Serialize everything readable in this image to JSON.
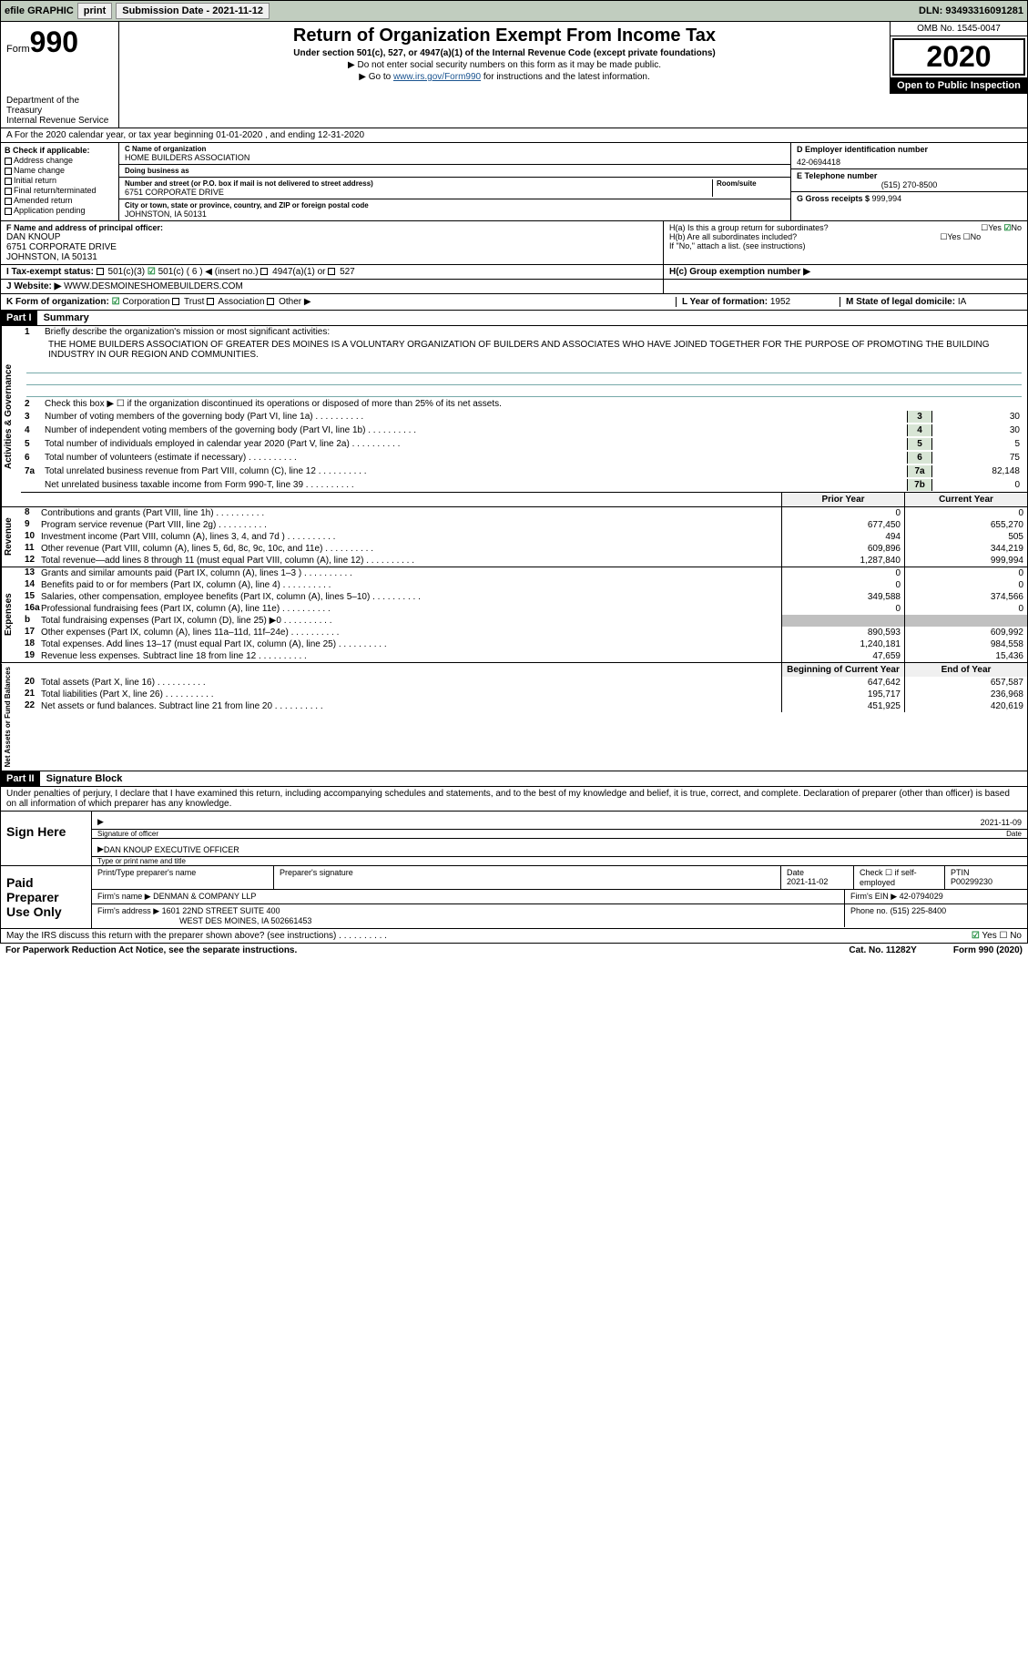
{
  "topbar": {
    "efile": "efile GRAPHIC",
    "print": "print",
    "subdate_label": "Submission Date - ",
    "subdate": "2021-11-12",
    "dln_label": "DLN: ",
    "dln": "93493316091281"
  },
  "header": {
    "form_label": "Form",
    "form_num": "990",
    "title": "Return of Organization Exempt From Income Tax",
    "subtitle": "Under section 501(c), 527, or 4947(a)(1) of the Internal Revenue Code (except private foundations)",
    "instr1": "▶ Do not enter social security numbers on this form as it may be made public.",
    "instr2a": "▶ Go to ",
    "instr2_link": "www.irs.gov/Form990",
    "instr2b": " for instructions and the latest information.",
    "dept": "Department of the Treasury\nInternal Revenue Service",
    "omb": "OMB No. 1545-0047",
    "year": "2020",
    "open": "Open to Public Inspection"
  },
  "A": {
    "line": "A For the 2020 calendar year, or tax year beginning 01-01-2020     , and ending 12-31-2020"
  },
  "B": {
    "header": "B Check if applicable:",
    "opts": [
      "Address change",
      "Name change",
      "Initial return",
      "Final return/terminated",
      "Amended return",
      "Application pending"
    ]
  },
  "C": {
    "name_label": "C Name of organization",
    "name": "HOME BUILDERS ASSOCIATION",
    "dba_label": "Doing business as",
    "addr_label": "Number and street (or P.O. box if mail is not delivered to street address)",
    "room_label": "Room/suite",
    "addr": "6751 CORPORATE DRIVE",
    "city_label": "City or town, state or province, country, and ZIP or foreign postal code",
    "city": "JOHNSTON, IA  50131"
  },
  "D": {
    "label": "D Employer identification number",
    "value": "42-0694418"
  },
  "E": {
    "label": "E Telephone number",
    "value": "(515) 270-8500"
  },
  "G": {
    "label": "G Gross receipts $ ",
    "value": "999,994"
  },
  "F": {
    "label": "F  Name and address of principal officer:",
    "name": "DAN KNOUP",
    "addr": "6751 CORPORATE DRIVE",
    "city": "JOHNSTON, IA  50131"
  },
  "H": {
    "a": "H(a)  Is this a group return for subordinates?",
    "b": "H(b)  Are all subordinates included?",
    "note": "If \"No,\" attach a list. (see instructions)",
    "c": "H(c)  Group exemption number ▶"
  },
  "I": {
    "label": "I   Tax-exempt status:",
    "o1": "501(c)(3)",
    "o2": "501(c) ( 6 ) ◀ (insert no.)",
    "o3": "4947(a)(1) or",
    "o4": "527"
  },
  "J": {
    "label": "J   Website: ▶",
    "value": "WWW.DESMOINESHOMEBUILDERS.COM"
  },
  "K": {
    "label": "K Form of organization:",
    "opts": [
      "Corporation",
      "Trust",
      "Association",
      "Other ▶"
    ]
  },
  "L": {
    "label": "L Year of formation: ",
    "value": "1952"
  },
  "M": {
    "label": "M State of legal domicile: ",
    "value": "IA"
  },
  "parts": {
    "p1": "Part I",
    "p1_title": "Summary",
    "p2": "Part II",
    "p2_title": "Signature Block"
  },
  "summary": {
    "l1_label": "Briefly describe the organization's mission or most significant activities:",
    "l1_text": "THE HOME BUILDERS ASSOCIATION OF GREATER DES MOINES IS A VOLUNTARY ORGANIZATION OF BUILDERS AND ASSOCIATES WHO HAVE JOINED TOGETHER FOR THE PURPOSE OF PROMOTING THE BUILDING INDUSTRY IN OUR REGION AND COMMUNITIES.",
    "l2": "Check this box ▶ ☐ if the organization discontinued its operations or disposed of more than 25% of its net assets.",
    "l3": "Number of voting members of the governing body (Part VI, line 1a)",
    "l3v": "30",
    "l4": "Number of independent voting members of the governing body (Part VI, line 1b)",
    "l4v": "30",
    "l5": "Total number of individuals employed in calendar year 2020 (Part V, line 2a)",
    "l5v": "5",
    "l6": "Total number of volunteers (estimate if necessary)",
    "l6v": "75",
    "l7a": "Total unrelated business revenue from Part VIII, column (C), line 12",
    "l7av": "82,148",
    "l7b": "Net unrelated business taxable income from Form 990-T, line 39",
    "l7bv": "0",
    "pyh": "Prior Year",
    "cyh": "Current Year",
    "boyh": "Beginning of Current Year",
    "eoyh": "End of Year"
  },
  "table_lines": [
    {
      "n": "8",
      "t": "Contributions and grants (Part VIII, line 1h)",
      "py": "0",
      "cy": "0"
    },
    {
      "n": "9",
      "t": "Program service revenue (Part VIII, line 2g)",
      "py": "677,450",
      "cy": "655,270"
    },
    {
      "n": "10",
      "t": "Investment income (Part VIII, column (A), lines 3, 4, and 7d )",
      "py": "494",
      "cy": "505"
    },
    {
      "n": "11",
      "t": "Other revenue (Part VIII, column (A), lines 5, 6d, 8c, 9c, 10c, and 11e)",
      "py": "609,896",
      "cy": "344,219"
    },
    {
      "n": "12",
      "t": "Total revenue—add lines 8 through 11 (must equal Part VIII, column (A), line 12)",
      "py": "1,287,840",
      "cy": "999,994"
    },
    {
      "n": "13",
      "t": "Grants and similar amounts paid (Part IX, column (A), lines 1–3 )",
      "py": "0",
      "cy": "0"
    },
    {
      "n": "14",
      "t": "Benefits paid to or for members (Part IX, column (A), line 4)",
      "py": "0",
      "cy": "0"
    },
    {
      "n": "15",
      "t": "Salaries, other compensation, employee benefits (Part IX, column (A), lines 5–10)",
      "py": "349,588",
      "cy": "374,566"
    },
    {
      "n": "16a",
      "t": "Professional fundraising fees (Part IX, column (A), line 11e)",
      "py": "0",
      "cy": "0"
    },
    {
      "n": "b",
      "t": "Total fundraising expenses (Part IX, column (D), line 25) ▶0",
      "py": "",
      "cy": "",
      "grey": true
    },
    {
      "n": "17",
      "t": "Other expenses (Part IX, column (A), lines 11a–11d, 11f–24e)",
      "py": "890,593",
      "cy": "609,992"
    },
    {
      "n": "18",
      "t": "Total expenses. Add lines 13–17 (must equal Part IX, column (A), line 25)",
      "py": "1,240,181",
      "cy": "984,558"
    },
    {
      "n": "19",
      "t": "Revenue less expenses. Subtract line 18 from line 12",
      "py": "47,659",
      "cy": "15,436"
    },
    {
      "n": "20",
      "t": "Total assets (Part X, line 16)",
      "py": "647,642",
      "cy": "657,587"
    },
    {
      "n": "21",
      "t": "Total liabilities (Part X, line 26)",
      "py": "195,717",
      "cy": "236,968"
    },
    {
      "n": "22",
      "t": "Net assets or fund balances. Subtract line 21 from line 20",
      "py": "451,925",
      "cy": "420,619"
    }
  ],
  "sections": {
    "act_gov": "Activities & Governance",
    "rev": "Revenue",
    "exp": "Expenses",
    "na": "Net Assets or Fund Balances"
  },
  "sig": {
    "penalty": "Under penalties of perjury, I declare that I have examined this return, including accompanying schedules and statements, and to the best of my knowledge and belief, it is true, correct, and complete. Declaration of preparer (other than officer) is based on all information of which preparer has any knowledge.",
    "sign_here": "Sign Here",
    "sig_officer": "Signature of officer",
    "date_label": "Date",
    "sig_date": "2021-11-09",
    "name_title": "DAN KNOUP  EXECUTIVE OFFICER",
    "type_label": "Type or print name and title",
    "paid": "Paid Preparer Use Only",
    "prep_name_label": "Print/Type preparer's name",
    "prep_sig_label": "Preparer's signature",
    "prep_date_label": "Date",
    "prep_date": "2021-11-02",
    "self_emp": "Check ☐ if self-employed",
    "ptin_label": "PTIN",
    "ptin": "P00299230",
    "firm_name_label": "Firm's name   ▶",
    "firm_name": "DENMAN & COMPANY LLP",
    "firm_ein_label": "Firm's EIN ▶",
    "firm_ein": "42-0794029",
    "firm_addr_label": "Firm's address ▶",
    "firm_addr": "1601 22ND STREET SUITE 400",
    "firm_city": "WEST DES MOINES, IA  502661453",
    "phone_label": "Phone no.",
    "phone": "(515) 225-8400",
    "may_irs": "May the IRS discuss this return with the preparer shown above? (see instructions)",
    "paperwork": "For Paperwork Reduction Act Notice, see the separate instructions.",
    "cat": "Cat. No. 11282Y",
    "form_footer": "Form 990 (2020)"
  }
}
